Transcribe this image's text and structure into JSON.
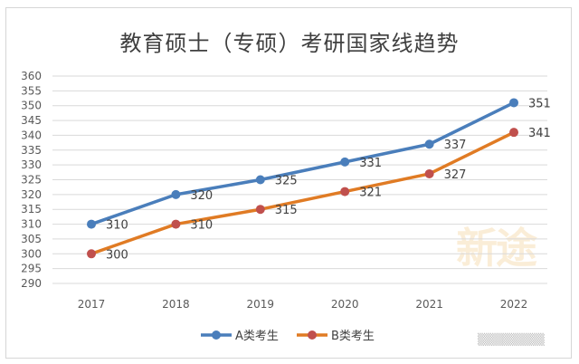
{
  "chart_data": {
    "type": "line",
    "title": "教育硕士（专硕）考研国家线趋势",
    "categories": [
      "2017",
      "2018",
      "2019",
      "2020",
      "2021",
      "2022"
    ],
    "series": [
      {
        "name": "A类考生",
        "values": [
          310,
          320,
          325,
          331,
          337,
          351
        ],
        "color": "#4a7ebb"
      },
      {
        "name": "B类考生",
        "values": [
          300,
          310,
          315,
          321,
          327,
          341
        ],
        "color": "#e07b24"
      }
    ],
    "ylim": [
      290,
      360
    ],
    "yticks": [
      290,
      295,
      300,
      305,
      310,
      315,
      320,
      325,
      330,
      335,
      340,
      345,
      350,
      355,
      360
    ],
    "xlabel": "",
    "ylabel": "",
    "grid": true,
    "legend": "bottom",
    "marker_color": "#c0504d",
    "label_positions": {
      "A类考生": [
        "right",
        "right",
        "right",
        "right",
        "right",
        "right"
      ],
      "B类考生": [
        "right",
        "right",
        "right",
        "right",
        "right",
        "right"
      ]
    }
  },
  "decor": {
    "watermark": "新途",
    "corner_text": "▒▒▒▒▒▒▒▒"
  }
}
